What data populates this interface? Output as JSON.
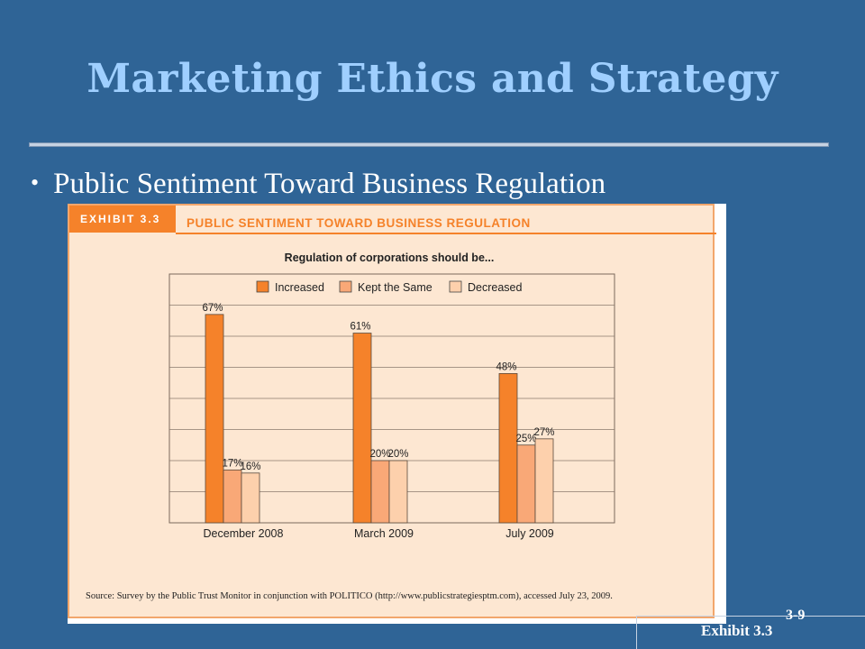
{
  "slide": {
    "title": "Marketing Ethics and Strategy",
    "bullet": "Public Sentiment Toward Business Regulation",
    "slide_number": "3-9",
    "exhibit_label": "Exhibit 3.3"
  },
  "exhibit": {
    "tab_label": "EXHIBIT 3.3",
    "title": "PUBLIC SENTIMENT TOWARD BUSINESS REGULATION",
    "source": "Source: Survey by the Public Trust Monitor in conjunction with POLITICO (http://www.publicstrategiesptm.com), accessed July 23, 2009."
  },
  "colors": {
    "increased": "#f5822a",
    "kept_the_same": "#f9a877",
    "decreased": "#fdd0ac",
    "plot_background": "#fde7d2"
  },
  "chart_data": {
    "type": "bar",
    "title": "Regulation of corporations should be...",
    "categories": [
      "December 2008",
      "March 2009",
      "July 2009"
    ],
    "series": [
      {
        "name": "Increased",
        "values": [
          67,
          61,
          48
        ],
        "labels": [
          "67%",
          "61%",
          "48%"
        ]
      },
      {
        "name": "Kept the Same",
        "values": [
          17,
          20,
          25
        ],
        "labels": [
          "17%",
          "20%",
          "25%"
        ]
      },
      {
        "name": "Decreased",
        "values": [
          16,
          20,
          27
        ],
        "labels": [
          "16%",
          "20%",
          "27%"
        ]
      }
    ],
    "xlabel": "",
    "ylabel": "",
    "ylim": [
      0,
      80
    ],
    "grid": true,
    "legend": "top-center"
  }
}
